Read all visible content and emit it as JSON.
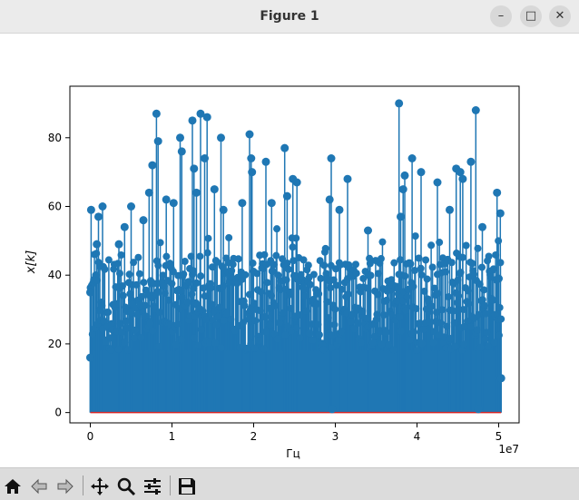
{
  "window": {
    "title": "Figure 1",
    "controls": {
      "minimize": "–",
      "maximize": "□",
      "close": "✕"
    }
  },
  "toolbar": {
    "icons": [
      "home-icon",
      "back-arrow-icon",
      "forward-arrow-icon",
      "pan-icon",
      "zoom-icon",
      "configure-subplots-icon",
      "save-icon"
    ]
  },
  "colors": {
    "stem": "#1f77b4",
    "baseline": "#d62728"
  },
  "chart_data": {
    "type": "stem",
    "title": "",
    "xlabel": "Гц",
    "ylabel": "x[k]",
    "x_multiplier": "1e7",
    "xlim": [
      -2.5,
      52.5
    ],
    "ylim": [
      -3,
      95
    ],
    "xticks": [
      {
        "value": 0,
        "label": "0"
      },
      {
        "value": 10,
        "label": "1"
      },
      {
        "value": 20,
        "label": "2"
      },
      {
        "value": 30,
        "label": "3"
      },
      {
        "value": 40,
        "label": "4"
      },
      {
        "value": 50,
        "label": "5"
      }
    ],
    "yticks": [
      {
        "value": 0,
        "label": "0"
      },
      {
        "value": 20,
        "label": "20"
      },
      {
        "value": 40,
        "label": "40"
      },
      {
        "value": 60,
        "label": "60"
      },
      {
        "value": 80,
        "label": "80"
      }
    ],
    "x_units": "Hz / 1e6",
    "peaks": [
      {
        "x": 0.1,
        "y": 59
      },
      {
        "x": 0.8,
        "y": 49
      },
      {
        "x": 1.0,
        "y": 57
      },
      {
        "x": 1.5,
        "y": 60
      },
      {
        "x": 3.5,
        "y": 49
      },
      {
        "x": 4.2,
        "y": 54
      },
      {
        "x": 5.0,
        "y": 60
      },
      {
        "x": 6.5,
        "y": 56
      },
      {
        "x": 7.2,
        "y": 64
      },
      {
        "x": 7.6,
        "y": 72
      },
      {
        "x": 8.1,
        "y": 87
      },
      {
        "x": 8.3,
        "y": 79
      },
      {
        "x": 9.3,
        "y": 62
      },
      {
        "x": 10.2,
        "y": 61
      },
      {
        "x": 11.0,
        "y": 80
      },
      {
        "x": 11.2,
        "y": 76
      },
      {
        "x": 12.5,
        "y": 85
      },
      {
        "x": 12.7,
        "y": 71
      },
      {
        "x": 13.0,
        "y": 64
      },
      {
        "x": 13.5,
        "y": 87
      },
      {
        "x": 14.0,
        "y": 74
      },
      {
        "x": 14.3,
        "y": 86
      },
      {
        "x": 15.2,
        "y": 65
      },
      {
        "x": 16.0,
        "y": 80
      },
      {
        "x": 16.3,
        "y": 59
      },
      {
        "x": 18.6,
        "y": 61
      },
      {
        "x": 19.5,
        "y": 81
      },
      {
        "x": 19.7,
        "y": 74
      },
      {
        "x": 19.8,
        "y": 70
      },
      {
        "x": 21.5,
        "y": 73
      },
      {
        "x": 22.2,
        "y": 61
      },
      {
        "x": 23.8,
        "y": 77
      },
      {
        "x": 24.1,
        "y": 63
      },
      {
        "x": 24.8,
        "y": 68
      },
      {
        "x": 25.3,
        "y": 67
      },
      {
        "x": 29.5,
        "y": 74
      },
      {
        "x": 29.3,
        "y": 62
      },
      {
        "x": 30.5,
        "y": 59
      },
      {
        "x": 31.5,
        "y": 68
      },
      {
        "x": 34.0,
        "y": 53
      },
      {
        "x": 37.8,
        "y": 90
      },
      {
        "x": 38.0,
        "y": 57
      },
      {
        "x": 38.3,
        "y": 65
      },
      {
        "x": 38.5,
        "y": 69
      },
      {
        "x": 39.4,
        "y": 74
      },
      {
        "x": 40.5,
        "y": 70
      },
      {
        "x": 42.5,
        "y": 67
      },
      {
        "x": 44.0,
        "y": 59
      },
      {
        "x": 44.8,
        "y": 71
      },
      {
        "x": 45.3,
        "y": 70
      },
      {
        "x": 45.6,
        "y": 68
      },
      {
        "x": 46.6,
        "y": 73
      },
      {
        "x": 47.2,
        "y": 88
      },
      {
        "x": 48.0,
        "y": 54
      },
      {
        "x": 49.8,
        "y": 64
      },
      {
        "x": 50.2,
        "y": 58
      },
      {
        "x": 50.0,
        "y": 39
      },
      {
        "x": 50.3,
        "y": 10
      },
      {
        "x": 29.6,
        "y": 1
      },
      {
        "x": 47.5,
        "y": 1
      },
      {
        "x": 0.0,
        "y": 35
      },
      {
        "x": 0.0,
        "y": 16
      }
    ]
  }
}
